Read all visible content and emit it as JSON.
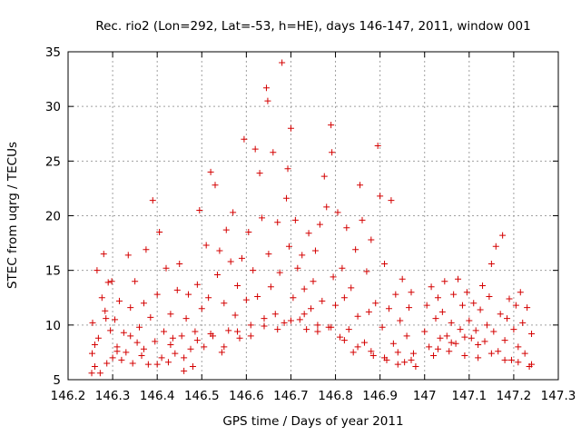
{
  "chart_data": {
    "type": "scatter",
    "title": "Rec. rio2 (Lon=292, Lat=-53, h=HE), days 146-147, 2011, window 001",
    "xlabel": "GPS time / Days of year 2011",
    "ylabel": "STEC from uqrg / TECUs",
    "xlim": [
      146.2,
      147.3
    ],
    "ylim": [
      5,
      35
    ],
    "xticks": [
      "146.2",
      "146.3",
      "146.4",
      "146.5",
      "146.6",
      "146.7",
      "146.8",
      "146.9",
      "147",
      "147.1",
      "147.2",
      "147.3"
    ],
    "yticks": [
      "5",
      "10",
      "15",
      "20",
      "25",
      "30",
      "35"
    ],
    "grid": true,
    "marker": "+",
    "color": "#d40000",
    "series": [
      {
        "points": [
          [
            146.253,
            5.6
          ],
          [
            146.254,
            7.4
          ],
          [
            146.255,
            10.2
          ],
          [
            146.26,
            6.2
          ],
          [
            146.265,
            15.0
          ],
          [
            146.268,
            8.8
          ],
          [
            146.272,
            5.6
          ],
          [
            146.276,
            12.5
          ],
          [
            146.28,
            16.5
          ],
          [
            146.283,
            11.3
          ],
          [
            146.287,
            6.5
          ],
          [
            146.29,
            13.9
          ],
          [
            146.295,
            9.5
          ],
          [
            146.298,
            14.0
          ],
          [
            146.3,
            7.0
          ],
          [
            146.305,
            10.5
          ],
          [
            146.31,
            8.0
          ],
          [
            146.315,
            12.2
          ],
          [
            146.32,
            6.8
          ],
          [
            146.325,
            9.3
          ],
          [
            146.33,
            7.5
          ],
          [
            146.335,
            16.4
          ],
          [
            146.34,
            11.6
          ],
          [
            146.345,
            6.5
          ],
          [
            146.35,
            14.0
          ],
          [
            146.355,
            8.4
          ],
          [
            146.36,
            9.8
          ],
          [
            146.365,
            7.2
          ],
          [
            146.37,
            12.0
          ],
          [
            146.375,
            16.9
          ],
          [
            146.38,
            6.4
          ],
          [
            146.385,
            10.7
          ],
          [
            146.39,
            21.4
          ],
          [
            146.395,
            8.5
          ],
          [
            146.4,
            12.8
          ],
          [
            146.405,
            18.5
          ],
          [
            146.41,
            7.0
          ],
          [
            146.415,
            9.4
          ],
          [
            146.42,
            15.2
          ],
          [
            146.425,
            6.6
          ],
          [
            146.43,
            11.0
          ],
          [
            146.435,
            8.8
          ],
          [
            146.44,
            7.4
          ],
          [
            146.445,
            13.2
          ],
          [
            146.45,
            15.6
          ],
          [
            146.455,
            9.0
          ],
          [
            146.46,
            5.8
          ],
          [
            146.465,
            10.6
          ],
          [
            146.47,
            12.8
          ],
          [
            146.475,
            7.8
          ],
          [
            146.48,
            6.2
          ],
          [
            146.485,
            9.4
          ],
          [
            146.49,
            13.7
          ],
          [
            146.495,
            20.5
          ],
          [
            146.5,
            11.5
          ],
          [
            146.505,
            8.0
          ],
          [
            146.51,
            17.3
          ],
          [
            146.515,
            12.5
          ],
          [
            146.52,
            24.0
          ],
          [
            146.525,
            9.0
          ],
          [
            146.53,
            22.8
          ],
          [
            146.535,
            14.6
          ],
          [
            146.54,
            16.8
          ],
          [
            146.545,
            7.5
          ],
          [
            146.55,
            12.0
          ],
          [
            146.555,
            18.7
          ],
          [
            146.56,
            9.5
          ],
          [
            146.565,
            15.8
          ],
          [
            146.57,
            20.3
          ],
          [
            146.575,
            10.9
          ],
          [
            146.58,
            13.6
          ],
          [
            146.585,
            8.8
          ],
          [
            146.59,
            16.1
          ],
          [
            146.595,
            27.0
          ],
          [
            146.6,
            12.3
          ],
          [
            146.605,
            18.5
          ],
          [
            146.61,
            10.0
          ],
          [
            146.615,
            15.0
          ],
          [
            146.62,
            26.1
          ],
          [
            146.625,
            12.6
          ],
          [
            146.63,
            23.9
          ],
          [
            146.635,
            19.8
          ],
          [
            146.64,
            9.9
          ],
          [
            146.645,
            31.7
          ],
          [
            146.648,
            30.5
          ],
          [
            146.65,
            16.5
          ],
          [
            146.655,
            13.5
          ],
          [
            146.66,
            25.8
          ],
          [
            146.665,
            11.0
          ],
          [
            146.67,
            19.4
          ],
          [
            146.675,
            14.8
          ],
          [
            146.68,
            34.0
          ],
          [
            146.685,
            10.2
          ],
          [
            146.69,
            21.6
          ],
          [
            146.693,
            24.3
          ],
          [
            146.696,
            17.2
          ],
          [
            146.7,
            28.0
          ],
          [
            146.705,
            12.5
          ],
          [
            146.71,
            19.6
          ],
          [
            146.715,
            15.2
          ],
          [
            146.72,
            10.5
          ],
          [
            146.725,
            16.4
          ],
          [
            146.73,
            13.3
          ],
          [
            146.735,
            9.6
          ],
          [
            146.74,
            18.4
          ],
          [
            146.745,
            11.5
          ],
          [
            146.75,
            14.0
          ],
          [
            146.755,
            16.8
          ],
          [
            146.76,
            10.0
          ],
          [
            146.765,
            19.2
          ],
          [
            146.77,
            12.2
          ],
          [
            146.775,
            23.6
          ],
          [
            146.78,
            20.8
          ],
          [
            146.785,
            9.8
          ],
          [
            146.79,
            28.3
          ],
          [
            146.792,
            25.8
          ],
          [
            146.795,
            14.4
          ],
          [
            146.8,
            11.8
          ],
          [
            146.805,
            20.3
          ],
          [
            146.81,
            8.9
          ],
          [
            146.815,
            15.2
          ],
          [
            146.82,
            12.5
          ],
          [
            146.825,
            18.9
          ],
          [
            146.83,
            9.6
          ],
          [
            146.835,
            13.4
          ],
          [
            146.84,
            7.5
          ],
          [
            146.845,
            16.9
          ],
          [
            146.85,
            10.8
          ],
          [
            146.855,
            22.8
          ],
          [
            146.86,
            19.6
          ],
          [
            146.865,
            8.4
          ],
          [
            146.87,
            14.9
          ],
          [
            146.875,
            11.2
          ],
          [
            146.88,
            17.8
          ],
          [
            146.885,
            7.2
          ],
          [
            146.89,
            12.0
          ],
          [
            146.895,
            26.4
          ],
          [
            146.9,
            21.8
          ],
          [
            146.905,
            9.8
          ],
          [
            146.91,
            15.6
          ],
          [
            146.915,
            6.8
          ],
          [
            146.92,
            11.5
          ],
          [
            146.925,
            21.4
          ],
          [
            146.93,
            8.3
          ],
          [
            146.935,
            12.8
          ],
          [
            146.94,
            7.5
          ],
          [
            146.945,
            10.4
          ],
          [
            146.95,
            14.2
          ],
          [
            146.955,
            6.6
          ],
          [
            146.96,
            9.0
          ],
          [
            146.965,
            11.6
          ],
          [
            146.97,
            13.0
          ],
          [
            146.975,
            7.4
          ],
          [
            146.98,
            6.2
          ],
          [
            147.0,
            9.4
          ],
          [
            147.005,
            11.8
          ],
          [
            147.01,
            8.0
          ],
          [
            147.015,
            13.5
          ],
          [
            147.02,
            7.2
          ],
          [
            147.025,
            10.6
          ],
          [
            147.03,
            12.5
          ],
          [
            147.035,
            8.8
          ],
          [
            147.04,
            11.2
          ],
          [
            147.045,
            14.0
          ],
          [
            147.05,
            9.0
          ],
          [
            147.055,
            7.6
          ],
          [
            147.06,
            10.2
          ],
          [
            147.065,
            12.8
          ],
          [
            147.07,
            8.3
          ],
          [
            147.075,
            14.2
          ],
          [
            147.08,
            9.6
          ],
          [
            147.085,
            11.8
          ],
          [
            147.09,
            7.2
          ],
          [
            147.095,
            13.0
          ],
          [
            147.1,
            10.4
          ],
          [
            147.105,
            8.8
          ],
          [
            147.11,
            12.0
          ],
          [
            147.115,
            9.5
          ],
          [
            147.12,
            7.0
          ],
          [
            147.125,
            11.4
          ],
          [
            147.13,
            13.6
          ],
          [
            147.135,
            8.5
          ],
          [
            147.14,
            10.0
          ],
          [
            147.145,
            12.6
          ],
          [
            147.15,
            15.6
          ],
          [
            147.155,
            9.4
          ],
          [
            147.16,
            17.2
          ],
          [
            147.165,
            7.6
          ],
          [
            147.17,
            11.0
          ],
          [
            147.175,
            18.2
          ],
          [
            147.18,
            8.6
          ],
          [
            147.185,
            10.6
          ],
          [
            147.19,
            12.4
          ],
          [
            147.195,
            6.8
          ],
          [
            147.2,
            9.6
          ],
          [
            147.205,
            11.8
          ],
          [
            147.21,
            8.0
          ],
          [
            147.215,
            13.0
          ],
          [
            147.22,
            10.2
          ],
          [
            147.225,
            7.4
          ],
          [
            147.23,
            11.6
          ],
          [
            147.235,
            6.2
          ],
          [
            147.24,
            9.2
          ],
          [
            146.26,
            8.2
          ],
          [
            146.285,
            10.6
          ],
          [
            146.31,
            7.6
          ],
          [
            146.34,
            9.0
          ],
          [
            146.37,
            7.8
          ],
          [
            146.4,
            6.4
          ],
          [
            146.43,
            8.2
          ],
          [
            146.46,
            7.0
          ],
          [
            146.49,
            8.6
          ],
          [
            146.52,
            9.2
          ],
          [
            146.55,
            8.0
          ],
          [
            146.58,
            9.4
          ],
          [
            146.61,
            9.0
          ],
          [
            146.64,
            10.6
          ],
          [
            146.67,
            9.6
          ],
          [
            146.7,
            10.4
          ],
          [
            146.73,
            11.0
          ],
          [
            146.76,
            9.4
          ],
          [
            146.79,
            9.8
          ],
          [
            146.82,
            8.6
          ],
          [
            146.85,
            8.0
          ],
          [
            146.88,
            7.6
          ],
          [
            146.91,
            7.0
          ],
          [
            146.94,
            6.4
          ],
          [
            146.97,
            6.8
          ],
          [
            147.03,
            7.8
          ],
          [
            147.06,
            8.4
          ],
          [
            147.09,
            8.9
          ],
          [
            147.12,
            8.2
          ],
          [
            147.15,
            7.4
          ],
          [
            147.18,
            6.8
          ],
          [
            147.21,
            6.6
          ],
          [
            147.24,
            6.4
          ]
        ]
      }
    ]
  }
}
